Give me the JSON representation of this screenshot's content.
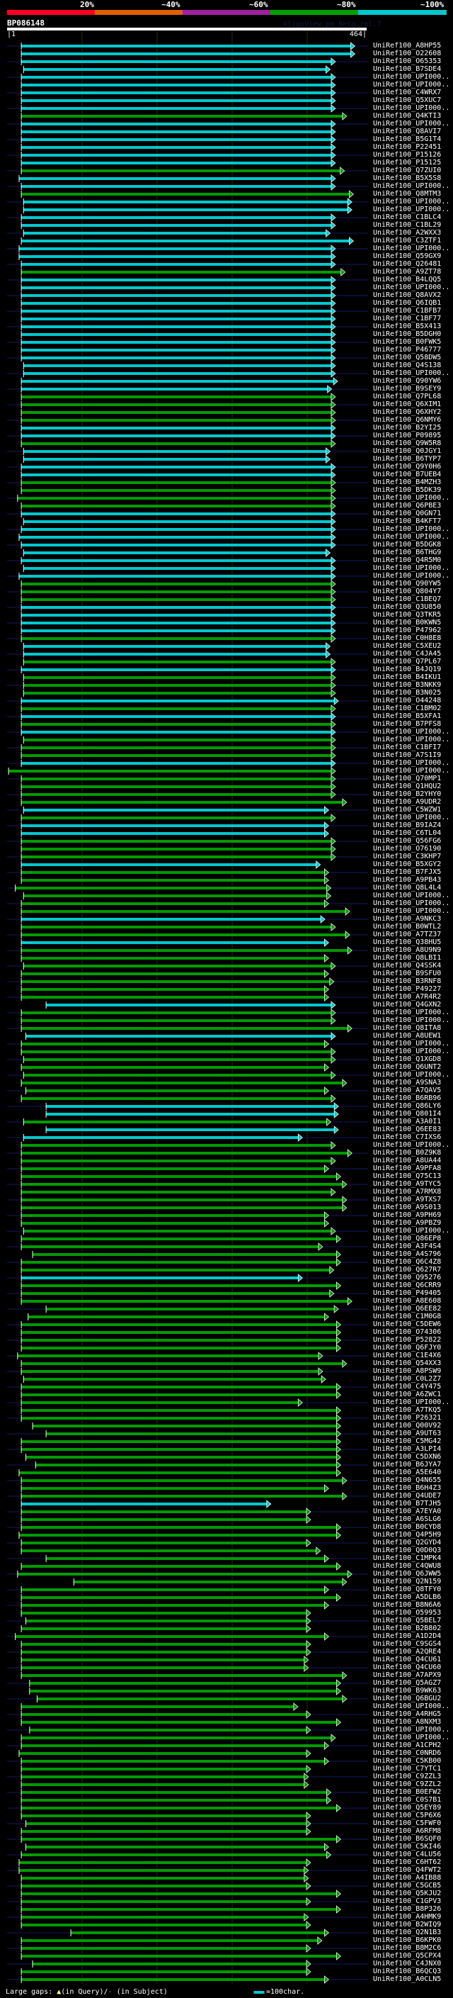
{
  "header": {
    "pct_labels": [
      "20%",
      "~40%",
      "~60%",
      "~80%",
      "~100%"
    ],
    "pct_colors": [
      "#ff0022",
      "#e06000",
      "#a020a0",
      "#00a000",
      "#00c8cc"
    ],
    "query_name": "BP086148",
    "watermark": "AlignView.pm Beta rel.7",
    "query_start": "|1",
    "query_end": "464|",
    "query_length": 464
  },
  "colors": {
    "c": "#00c8cc",
    "g": "#009a00"
  },
  "rows": [
    [
      "UniRef100_A8HP55",
      "c",
      20,
      459
    ],
    [
      "UniRef100_O22608",
      "c",
      20,
      459
    ],
    [
      "UniRef100_O65353",
      "c",
      20,
      433
    ],
    [
      "UniRef100_B7SDE4",
      "c",
      23,
      426
    ],
    [
      "UniRef100_UPI000..",
      "c",
      20,
      433
    ],
    [
      "UniRef100_UPI000..",
      "c",
      20,
      433
    ],
    [
      "UniRef100_C4WRX7",
      "c",
      20,
      433
    ],
    [
      "UniRef100_Q5XUC7",
      "c",
      20,
      433
    ],
    [
      "UniRef100_UPI000..",
      "c",
      20,
      433
    ],
    [
      "UniRef100_Q4KTI3",
      "g",
      20,
      448
    ],
    [
      "UniRef100_UPI000..",
      "c",
      20,
      433
    ],
    [
      "UniRef100_Q8AVI7",
      "c",
      20,
      433
    ],
    [
      "UniRef100_B5G1T4",
      "c",
      20,
      433
    ],
    [
      "UniRef100_P22451",
      "c",
      20,
      433
    ],
    [
      "UniRef100_P15126",
      "c",
      20,
      433
    ],
    [
      "UniRef100_P15125",
      "c",
      20,
      433
    ],
    [
      "UniRef100_Q7ZUI0",
      "g",
      20,
      445
    ],
    [
      "UniRef100_B5X5S8",
      "c",
      17,
      433
    ],
    [
      "UniRef100_UPI000..",
      "c",
      20,
      433
    ],
    [
      "UniRef100_Q8MTM3",
      "g",
      20,
      457
    ],
    [
      "UniRef100_UPI000..",
      "c",
      23,
      455
    ],
    [
      "UniRef100_UPI000..",
      "c",
      23,
      455
    ],
    [
      "UniRef100_C1BLC4",
      "c",
      20,
      433
    ],
    [
      "UniRef100_C1BL29",
      "c",
      20,
      433
    ],
    [
      "UniRef100_A2WXX3",
      "c",
      23,
      426
    ],
    [
      "UniRef100_C3ZTF1",
      "c",
      20,
      457
    ],
    [
      "UniRef100_UPI000..",
      "c",
      17,
      433
    ],
    [
      "UniRef100_Q59GX9",
      "c",
      17,
      433
    ],
    [
      "UniRef100_Q26481",
      "c",
      20,
      433
    ],
    [
      "UniRef100_A9ZT78",
      "g",
      20,
      446
    ],
    [
      "UniRef100_B4LQQ5",
      "c",
      20,
      433
    ],
    [
      "UniRef100_UPI000..",
      "c",
      20,
      433
    ],
    [
      "UniRef100_Q8AVX2",
      "c",
      20,
      433
    ],
    [
      "UniRef100_Q6IQB1",
      "c",
      20,
      433
    ],
    [
      "UniRef100_C1BFB7",
      "c",
      20,
      433
    ],
    [
      "UniRef100_C1BF77",
      "c",
      20,
      433
    ],
    [
      "UniRef100_B5X413",
      "c",
      20,
      433
    ],
    [
      "UniRef100_B5DGH0",
      "c",
      20,
      433
    ],
    [
      "UniRef100_B0FWK5",
      "c",
      20,
      433
    ],
    [
      "UniRef100_P46777",
      "c",
      20,
      433
    ],
    [
      "UniRef100_Q58DW5",
      "c",
      20,
      433
    ],
    [
      "UniRef100_Q4S138",
      "c",
      23,
      433
    ],
    [
      "UniRef100_UPI000..",
      "c",
      23,
      433
    ],
    [
      "UniRef100_Q90YW6",
      "c",
      20,
      436
    ],
    [
      "UniRef100_B9SEY9",
      "c",
      20,
      428
    ],
    [
      "UniRef100_Q7PL68",
      "g",
      20,
      433
    ],
    [
      "UniRef100_Q6XIM1",
      "g",
      20,
      433
    ],
    [
      "UniRef100_Q6XHY2",
      "g",
      20,
      433
    ],
    [
      "UniRef100_Q6NMY6",
      "g",
      20,
      433
    ],
    [
      "UniRef100_B2YI25",
      "c",
      20,
      433
    ],
    [
      "UniRef100_P09895",
      "c",
      20,
      433
    ],
    [
      "UniRef100_Q9W5R8",
      "g",
      20,
      433
    ],
    [
      "UniRef100_Q0JGY1",
      "c",
      23,
      426
    ],
    [
      "UniRef100_B6TYP7",
      "c",
      23,
      426
    ],
    [
      "UniRef100_Q9Y0H6",
      "c",
      20,
      433
    ],
    [
      "UniRef100_B7UEB4",
      "c",
      20,
      433
    ],
    [
      "UniRef100_B4MZH3",
      "g",
      20,
      433
    ],
    [
      "UniRef100_B5DK39",
      "g",
      20,
      433
    ],
    [
      "UniRef100_UPI000..",
      "g",
      15,
      433
    ],
    [
      "UniRef100_Q6PBE3",
      "g",
      20,
      433
    ],
    [
      "UniRef100_Q0GN71",
      "c",
      20,
      433
    ],
    [
      "UniRef100_B4KFT7",
      "c",
      23,
      433
    ],
    [
      "UniRef100_UPI000..",
      "c",
      20,
      433
    ],
    [
      "UniRef100_UPI000..",
      "c",
      17,
      433
    ],
    [
      "UniRef100_B5DGK8",
      "c",
      20,
      433
    ],
    [
      "UniRef100_B6THG9",
      "c",
      23,
      426
    ],
    [
      "UniRef100_Q4R5M0",
      "c",
      20,
      433
    ],
    [
      "UniRef100_UPI000..",
      "c",
      23,
      433
    ],
    [
      "UniRef100_UPI000..",
      "c",
      17,
      433
    ],
    [
      "UniRef100_Q90YW5",
      "g",
      20,
      433
    ],
    [
      "UniRef100_Q804Y7",
      "g",
      20,
      433
    ],
    [
      "UniRef100_C1BEQ7",
      "g",
      20,
      433
    ],
    [
      "UniRef100_Q3U850",
      "c",
      20,
      433
    ],
    [
      "UniRef100_Q3TKR5",
      "c",
      20,
      433
    ],
    [
      "UniRef100_B0KWN5",
      "c",
      20,
      433
    ],
    [
      "UniRef100_P47962",
      "c",
      20,
      433
    ],
    [
      "UniRef100_C0H8E8",
      "g",
      20,
      433
    ],
    [
      "UniRef100_C5XEU2",
      "c",
      23,
      426
    ],
    [
      "UniRef100_C4JA45",
      "c",
      23,
      426
    ],
    [
      "UniRef100_Q7PL67",
      "g",
      23,
      433
    ],
    [
      "UniRef100_B4JQ19",
      "c",
      20,
      433
    ],
    [
      "UniRef100_B4IKU1",
      "g",
      23,
      433
    ],
    [
      "UniRef100_B3NKK9",
      "g",
      23,
      433
    ],
    [
      "UniRef100_B3N025",
      "g",
      23,
      433
    ],
    [
      "UniRef100_O44248",
      "c",
      20,
      437
    ],
    [
      "UniRef100_C1BM02",
      "g",
      20,
      433
    ],
    [
      "UniRef100_B5XFA1",
      "c",
      20,
      433
    ],
    [
      "UniRef100_B7PFS8",
      "g",
      20,
      433
    ],
    [
      "UniRef100_UPI000..",
      "c",
      20,
      433
    ],
    [
      "UniRef100_UPI000..",
      "g",
      23,
      433
    ],
    [
      "UniRef100_C1BFI7",
      "g",
      20,
      433
    ],
    [
      "UniRef100_A7S1I9",
      "g",
      20,
      433
    ],
    [
      "UniRef100_UPI000..",
      "c",
      20,
      433
    ],
    [
      "UniRef100_UPI000..",
      "g",
      3,
      433
    ],
    [
      "UniRef100_Q70MP1",
      "g",
      20,
      433
    ],
    [
      "UniRef100_Q1HQU2",
      "g",
      20,
      433
    ],
    [
      "UniRef100_B2YHY0",
      "g",
      20,
      433
    ],
    [
      "UniRef100_A9UDR2",
      "g",
      20,
      448
    ],
    [
      "UniRef100_C5WZW1",
      "c",
      23,
      424
    ],
    [
      "UniRef100_UPI000..",
      "g",
      20,
      433
    ],
    [
      "UniRef100_B9IAZ4",
      "c",
      20,
      424
    ],
    [
      "UniRef100_C6TL04",
      "c",
      20,
      424
    ],
    [
      "UniRef100_Q56FG6",
      "g",
      20,
      433
    ],
    [
      "UniRef100_O76190",
      "g",
      20,
      433
    ],
    [
      "UniRef100_C3KHP7",
      "g",
      20,
      433
    ],
    [
      "UniRef100_B5XGY2",
      "c",
      20,
      413
    ],
    [
      "UniRef100_B7FJX5",
      "g",
      20,
      424
    ],
    [
      "UniRef100_A9PB43",
      "g",
      20,
      424
    ],
    [
      "UniRef100_Q8L4L4",
      "g",
      12,
      427
    ],
    [
      "UniRef100_UPI000..",
      "g",
      23,
      427
    ],
    [
      "UniRef100_UPI000..",
      "g",
      20,
      424
    ],
    [
      "UniRef100_UPI000..",
      "g",
      20,
      452
    ],
    [
      "UniRef100_A9NKC3",
      "c",
      20,
      419
    ],
    [
      "UniRef100_B0WTL2",
      "g",
      20,
      433
    ],
    [
      "UniRef100_A7TZ37",
      "g",
      20,
      452
    ],
    [
      "UniRef100_Q38HU5",
      "c",
      20,
      424
    ],
    [
      "UniRef100_A8U9N9",
      "g",
      20,
      455
    ],
    [
      "UniRef100_Q8LBI1",
      "g",
      20,
      424
    ],
    [
      "UniRef100_Q4SSK4",
      "g",
      23,
      433
    ],
    [
      "UniRef100_B9SFU0",
      "g",
      20,
      424
    ],
    [
      "UniRef100_B3RNF8",
      "g",
      20,
      431
    ],
    [
      "UniRef100_P49227",
      "g",
      20,
      424
    ],
    [
      "UniRef100_A7R4R2",
      "g",
      20,
      424
    ],
    [
      "UniRef100_Q4GXN2",
      "c",
      53,
      433
    ],
    [
      "UniRef100_UPI000..",
      "g",
      20,
      433
    ],
    [
      "UniRef100_UPI000..",
      "g",
      20,
      433
    ],
    [
      "UniRef100_Q8ITA8",
      "g",
      20,
      455
    ],
    [
      "UniRef100_A8UEW1",
      "c",
      26,
      433
    ],
    [
      "UniRef100_UPI000..",
      "g",
      20,
      424
    ],
    [
      "UniRef100_UPI000..",
      "g",
      20,
      433
    ],
    [
      "UniRef100_Q1XGD8",
      "g",
      23,
      433
    ],
    [
      "UniRef100_Q6UNT2",
      "g",
      20,
      424
    ],
    [
      "UniRef100_UPI000..",
      "g",
      23,
      433
    ],
    [
      "UniRef100_A9SNA3",
      "g",
      20,
      448
    ],
    [
      "UniRef100_A7QAV5",
      "g",
      26,
      424
    ],
    [
      "UniRef100_B6RB96",
      "g",
      20,
      433
    ],
    [
      "UniRef100_Q86LY6",
      "c",
      53,
      437
    ],
    [
      "UniRef100_Q801I4",
      "c",
      53,
      437
    ],
    [
      "UniRef100_A3A0I1",
      "g",
      23,
      427
    ],
    [
      "UniRef100_Q6EE83",
      "c",
      53,
      437
    ],
    [
      "UniRef100_C7IXS6",
      "c",
      23,
      389
    ],
    [
      "UniRef100_UPI000..",
      "g",
      20,
      433
    ],
    [
      "UniRef100_B0Z9K8",
      "g",
      20,
      455
    ],
    [
      "UniRef100_A8UA44",
      "g",
      20,
      433
    ],
    [
      "UniRef100_A9PFA8",
      "g",
      20,
      424
    ],
    [
      "UniRef100_Q75C13",
      "g",
      20,
      440
    ],
    [
      "UniRef100_A9TYC5",
      "g",
      20,
      448
    ],
    [
      "UniRef100_A7RMX8",
      "g",
      20,
      433
    ],
    [
      "UniRef100_A9TXS7",
      "g",
      20,
      448
    ],
    [
      "UniRef100_A9S013",
      "g",
      20,
      448
    ],
    [
      "UniRef100_A9PH69",
      "g",
      20,
      424
    ],
    [
      "UniRef100_A9PBZ9",
      "g",
      20,
      424
    ],
    [
      "UniRef100_UPI000..",
      "g",
      23,
      433
    ],
    [
      "UniRef100_Q86EP8",
      "g",
      20,
      440
    ],
    [
      "UniRef100_A3F4S4",
      "g",
      20,
      416
    ],
    [
      "UniRef100_A4S796",
      "g",
      35,
      440
    ],
    [
      "UniRef100_Q6C4Z8",
      "g",
      20,
      440
    ],
    [
      "UniRef100_Q627R7",
      "g",
      20,
      431
    ],
    [
      "UniRef100_Q95276",
      "c",
      20,
      389
    ],
    [
      "UniRef100_Q6CRR9",
      "g",
      20,
      440
    ],
    [
      "UniRef100_P49405",
      "g",
      20,
      431
    ],
    [
      "UniRef100_A8E608",
      "g",
      20,
      455
    ],
    [
      "UniRef100_Q6EE82",
      "g",
      53,
      437
    ],
    [
      "UniRef100_C1M0G8",
      "g",
      29,
      424
    ],
    [
      "UniRef100_C5DEW6",
      "g",
      20,
      440
    ],
    [
      "UniRef100_O74306",
      "g",
      20,
      440
    ],
    [
      "UniRef100_P52822",
      "g",
      20,
      440
    ],
    [
      "UniRef100_Q6FJY0",
      "g",
      20,
      440
    ],
    [
      "UniRef100_C1E4X6",
      "g",
      15,
      416
    ],
    [
      "UniRef100_Q54XX3",
      "g",
      20,
      448
    ],
    [
      "UniRef100_A8PSW9",
      "g",
      20,
      416
    ],
    [
      "UniRef100_C0L2Z7",
      "g",
      23,
      420
    ],
    [
      "UniRef100_C4Y475",
      "g",
      20,
      440
    ],
    [
      "UniRef100_A6ZWC1",
      "g",
      20,
      440
    ],
    [
      "UniRef100_UPI000..",
      "g",
      20,
      389
    ],
    [
      "UniRef100_A7TKQ5",
      "g",
      20,
      440
    ],
    [
      "UniRef100_P26321",
      "g",
      20,
      440
    ],
    [
      "UniRef100_Q00V92",
      "g",
      35,
      440
    ],
    [
      "UniRef100_A9UT63",
      "g",
      53,
      440
    ],
    [
      "UniRef100_C5MG42",
      "g",
      20,
      440
    ],
    [
      "UniRef100_A3LPI4",
      "g",
      20,
      440
    ],
    [
      "UniRef100_C5DXN6",
      "g",
      26,
      440
    ],
    [
      "UniRef100_B6JYA7",
      "g",
      39,
      440
    ],
    [
      "UniRef100_A5E640",
      "g",
      17,
      440
    ],
    [
      "UniRef100_Q4N655",
      "g",
      20,
      448
    ],
    [
      "UniRef100_B6H4Z3",
      "g",
      20,
      424
    ],
    [
      "UniRef100_Q4UDE7",
      "g",
      20,
      448
    ],
    [
      "UniRef100_B7TJH5",
      "c",
      20,
      347
    ],
    [
      "UniRef100_A7EYA0",
      "g",
      20,
      400
    ],
    [
      "UniRef100_A6SLG6",
      "g",
      20,
      400
    ],
    [
      "UniRef100_B0CYD8",
      "g",
      20,
      440
    ],
    [
      "UniRef100_Q4P5H9",
      "g",
      17,
      440
    ],
    [
      "UniRef100_Q2GYD4",
      "g",
      20,
      400
    ],
    [
      "UniRef100_Q0D0Q3",
      "g",
      20,
      413
    ],
    [
      "UniRef100_C1MPK4",
      "g",
      53,
      424
    ],
    [
      "UniRef100_C4QWU8",
      "g",
      20,
      440
    ],
    [
      "UniRef100_Q6JWW5",
      "g",
      15,
      455
    ],
    [
      "UniRef100_Q2N159",
      "g",
      90,
      448
    ],
    [
      "UniRef100_Q8TFY0",
      "g",
      20,
      424
    ],
    [
      "UniRef100_A5DLB6",
      "g",
      20,
      440
    ],
    [
      "UniRef100_B8N6A6",
      "g",
      20,
      424
    ],
    [
      "UniRef100_O59953",
      "g",
      20,
      400
    ],
    [
      "UniRef100_Q5BEL7",
      "g",
      26,
      400
    ],
    [
      "UniRef100_B2B802",
      "g",
      20,
      400
    ],
    [
      "UniRef100_A1D2D4",
      "g",
      12,
      424
    ],
    [
      "UniRef100_C9SGS4",
      "g",
      20,
      400
    ],
    [
      "UniRef100_A2QRE4",
      "g",
      20,
      400
    ],
    [
      "UniRef100_Q4CU61",
      "g",
      20,
      397
    ],
    [
      "UniRef100_Q4CU60",
      "g",
      20,
      397
    ],
    [
      "UniRef100_A7APX9",
      "g",
      20,
      448
    ],
    [
      "UniRef100_Q5AGZ7",
      "g",
      31,
      440
    ],
    [
      "UniRef100_B9WK63",
      "g",
      31,
      440
    ],
    [
      "UniRef100_Q6BGU2",
      "g",
      41,
      448
    ],
    [
      "UniRef100_UPI000..",
      "g",
      20,
      383
    ],
    [
      "UniRef100_A4RHG5",
      "g",
      20,
      400
    ],
    [
      "UniRef100_A8NXM3",
      "g",
      20,
      440
    ],
    [
      "UniRef100_UPI000..",
      "g",
      31,
      400
    ],
    [
      "UniRef100_UPI000..",
      "g",
      20,
      433
    ],
    [
      "UniRef100_A1CPH2",
      "g",
      20,
      424
    ],
    [
      "UniRef100_C0NRD6",
      "g",
      17,
      400
    ],
    [
      "UniRef100_C5KB00",
      "g",
      20,
      424
    ],
    [
      "UniRef100_C7YTC1",
      "g",
      20,
      400
    ],
    [
      "UniRef100_C9ZZL3",
      "g",
      20,
      397
    ],
    [
      "UniRef100_C9ZZL2",
      "g",
      20,
      397
    ],
    [
      "UniRef100_B0EFW2",
      "g",
      20,
      427
    ],
    [
      "UniRef100_C0S7B1",
      "g",
      20,
      427
    ],
    [
      "UniRef100_Q5EY89",
      "g",
      20,
      440
    ],
    [
      "UniRef100_C5P6X6",
      "g",
      20,
      400
    ],
    [
      "UniRef100_C5FWF0",
      "g",
      26,
      400
    ],
    [
      "UniRef100_A6RFM8",
      "g",
      20,
      400
    ],
    [
      "UniRef100_B6SQF0",
      "g",
      20,
      440
    ],
    [
      "UniRef100_C5KI46",
      "g",
      26,
      424
    ],
    [
      "UniRef100_C4LU56",
      "g",
      20,
      427
    ],
    [
      "UniRef100_C6HT62",
      "g",
      17,
      400
    ],
    [
      "UniRef100_Q4FWT2",
      "g",
      17,
      397
    ],
    [
      "UniRef100_A4IB88",
      "g",
      20,
      397
    ],
    [
      "UniRef100_C5GCB5",
      "g",
      20,
      400
    ],
    [
      "UniRef100_Q5KJU2",
      "g",
      20,
      440
    ],
    [
      "UniRef100_C1GPV3",
      "g",
      20,
      400
    ],
    [
      "UniRef100_B8P326",
      "g",
      20,
      440
    ],
    [
      "UniRef100_A4HMK9",
      "g",
      20,
      397
    ],
    [
      "UniRef100_B2WIQ9",
      "g",
      20,
      400
    ],
    [
      "UniRef100_Q2N1B3",
      "g",
      86,
      424
    ],
    [
      "UniRef100_B6KPK0",
      "g",
      20,
      415
    ],
    [
      "UniRef100_B8M2C6",
      "g",
      20,
      400
    ],
    [
      "UniRef100_Q5CPX4",
      "g",
      20,
      440
    ],
    [
      "UniRef100_C4JNX0",
      "g",
      35,
      400
    ],
    [
      "UniRef100_B6QCQ3",
      "g",
      20,
      400
    ],
    [
      "UniRef100_A0CLN5",
      "g",
      20,
      424
    ]
  ],
  "footer": {
    "gaps_label": "Large gaps:",
    "query_gap_symbol": "▲",
    "query_gap_text": "(in Query)/",
    "subject_gap_symbol": "-",
    "subject_gap_text": " (in Subject)",
    "scale_text": "=100char."
  }
}
